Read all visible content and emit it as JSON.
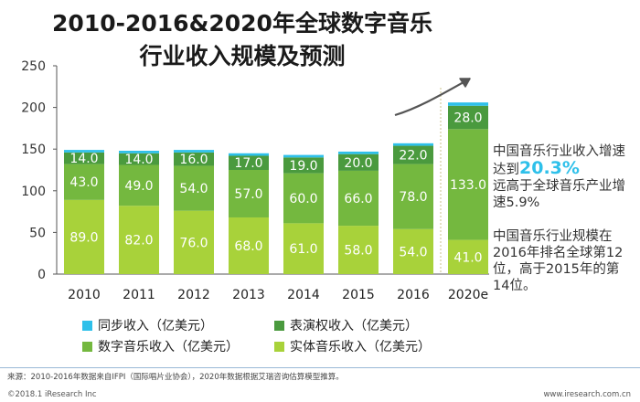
{
  "title_line1": "2010-2016&2020年全球数字音乐",
  "title_line2": "行业收入规模及预测",
  "annotation": {
    "line1": "中国音乐行业收入增速",
    "line2_prefix": "达到",
    "line2_value": "20.3%",
    "line3": "远高于全球音乐产业增",
    "line4": "速5.9%",
    "para2_line1": "中国音乐行业规模在",
    "para2_line2": "2016年排名全球第12",
    "para2_line3": "位，高于2015年的第",
    "para2_line4": "14位。"
  },
  "legend": [
    {
      "label": "同步收入（亿美元）",
      "color": "#2ec0ea"
    },
    {
      "label": "表演权收入（亿美元）",
      "color": "#4a9a3e"
    },
    {
      "label": "数字音乐收入（亿美元）",
      "color": "#74b83f"
    },
    {
      "label": "实体音乐收入（亿美元）",
      "color": "#a8d23a"
    }
  ],
  "source": "来源：2010-2016年数据来自IFPI（国际唱片业协会），2020年数据根据艾瑞咨询估算模型推算。",
  "footer_left": "©2018.1 iResearch Inc",
  "footer_right": "www.iresearch.com.cn",
  "chart_data": {
    "type": "bar",
    "stacked": true,
    "categories": [
      "2010",
      "2011",
      "2012",
      "2013",
      "2014",
      "2015",
      "2016",
      "2020e"
    ],
    "series": [
      {
        "name": "实体音乐收入（亿美元）",
        "color": "#a8d23a",
        "values": [
          89,
          82,
          76,
          68,
          61,
          58,
          54,
          41
        ]
      },
      {
        "name": "数字音乐收入（亿美元）",
        "color": "#74b83f",
        "values": [
          43,
          49,
          54,
          57,
          60,
          66,
          78,
          133
        ]
      },
      {
        "name": "表演权收入（亿美元）",
        "color": "#4a9a3e",
        "values": [
          14,
          14,
          16,
          17,
          19,
          20,
          22,
          28
        ]
      },
      {
        "name": "同步收入（亿美元）",
        "color": "#2ec0ea",
        "values": [
          3,
          3,
          3,
          3,
          3,
          3,
          3,
          4
        ]
      }
    ],
    "labeled_series": [
      "实体音乐收入（亿美元）",
      "数字音乐收入（亿美元）",
      "表演权收入（亿美元）"
    ],
    "yticks": [
      0,
      50,
      100,
      150,
      200,
      250
    ],
    "ylim": [
      0,
      250
    ],
    "grid": false,
    "legend_position": "bottom"
  }
}
